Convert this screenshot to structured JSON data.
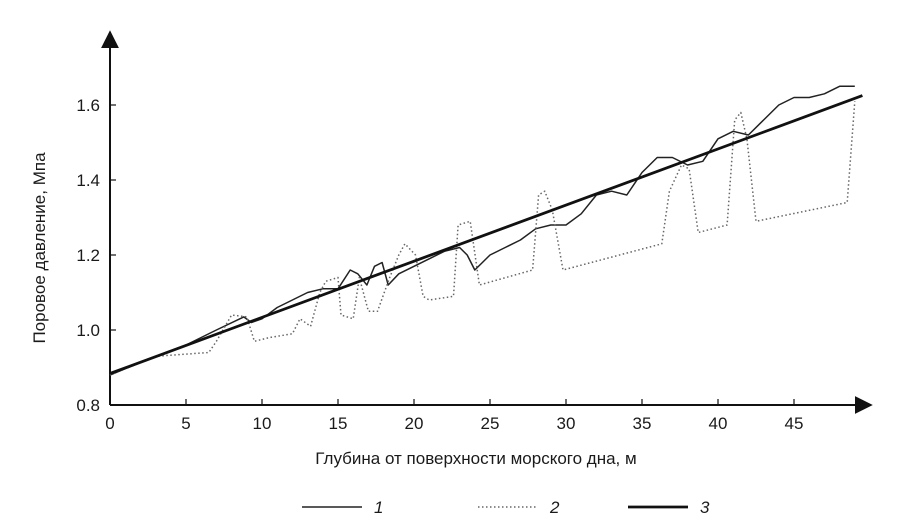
{
  "chart_data": {
    "type": "line",
    "xlabel": "Глубина от поверхности морского дна, м",
    "ylabel": "Поровое давление, Мпа",
    "xlim": [
      0,
      50
    ],
    "ylim": [
      0.8,
      1.72
    ],
    "x_ticks": [
      "0",
      "5",
      "10",
      "15",
      "20",
      "25",
      "30",
      "35",
      "40",
      "45"
    ],
    "y_ticks": [
      "0.8",
      "1.0",
      "1.2",
      "1.4",
      "1.6"
    ],
    "grid": false,
    "legend_position": "bottom-center",
    "series": [
      {
        "name": "1",
        "style": "thin-solid",
        "color": "#222222",
        "x": [
          0,
          3,
          5,
          7,
          8.8,
          9.3,
          10,
          11,
          12,
          13,
          14,
          15,
          15.8,
          16.3,
          16.9,
          17.4,
          17.9,
          18.3,
          19,
          20,
          21,
          22,
          23,
          23.5,
          24,
          24.5,
          25,
          26,
          27,
          28,
          29,
          30,
          31,
          32,
          33,
          34,
          35,
          36,
          37,
          38,
          39,
          40,
          41,
          42,
          43,
          44,
          45,
          46,
          47,
          48,
          49
        ],
        "y": [
          0.88,
          0.93,
          0.96,
          1.0,
          1.035,
          1.02,
          1.03,
          1.06,
          1.08,
          1.1,
          1.11,
          1.11,
          1.16,
          1.15,
          1.12,
          1.17,
          1.18,
          1.12,
          1.15,
          1.17,
          1.19,
          1.21,
          1.22,
          1.2,
          1.16,
          1.18,
          1.2,
          1.22,
          1.24,
          1.27,
          1.28,
          1.28,
          1.31,
          1.36,
          1.37,
          1.36,
          1.42,
          1.46,
          1.46,
          1.44,
          1.45,
          1.51,
          1.53,
          1.52,
          1.56,
          1.6,
          1.62,
          1.62,
          1.63,
          1.65,
          1.65
        ]
      },
      {
        "name": "2",
        "style": "dotted",
        "color": "#666666",
        "x": [
          0,
          3,
          6.5,
          7,
          8,
          9,
          9.5,
          10.5,
          12,
          12.5,
          13.2,
          13.8,
          14.2,
          15,
          15.2,
          16,
          16.4,
          17,
          17.6,
          18.4,
          19,
          19.4,
          20.1,
          20.6,
          21,
          22.6,
          22.9,
          23.7,
          24.3,
          27.8,
          28.2,
          28.6,
          29.1,
          29.8,
          36.3,
          36.8,
          37.6,
          38.1,
          38.7,
          40.6,
          41.1,
          41.5,
          41.9,
          42.5,
          48.5,
          49
        ],
        "y": [
          0.88,
          0.93,
          0.94,
          0.97,
          1.04,
          1.035,
          0.97,
          0.98,
          0.99,
          1.03,
          1.01,
          1.1,
          1.13,
          1.14,
          1.04,
          1.03,
          1.14,
          1.05,
          1.05,
          1.14,
          1.2,
          1.23,
          1.2,
          1.09,
          1.08,
          1.09,
          1.28,
          1.29,
          1.12,
          1.16,
          1.36,
          1.37,
          1.32,
          1.16,
          1.23,
          1.37,
          1.44,
          1.43,
          1.26,
          1.28,
          1.56,
          1.58,
          1.51,
          1.29,
          1.34,
          1.61
        ]
      },
      {
        "name": "3",
        "style": "thick-solid",
        "color": "#111111",
        "x": [
          0,
          49.5
        ],
        "y": [
          0.884,
          1.625
        ]
      }
    ]
  }
}
